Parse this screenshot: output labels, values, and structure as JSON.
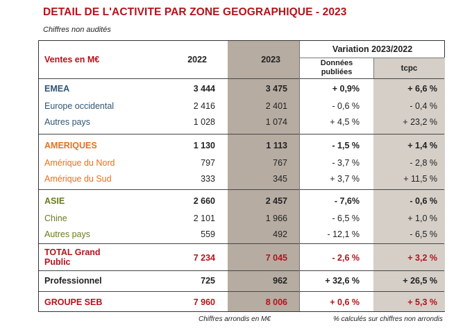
{
  "title": "DETAIL DE L'ACTIVITE PAR ZONE GEOGRAPHIQUE - 2023",
  "subtitle": "Chiffres non audités",
  "header": {
    "label": "Ventes en M€",
    "col_2022": "2022",
    "col_2023": "2023",
    "variation": "Variation 2023/2022",
    "published_line1": "Données",
    "published_line2": "publiées",
    "tcpc": "tcpc"
  },
  "rows": [
    {
      "label": "EMEA",
      "v2022": "3 444",
      "v2023": "3 475",
      "pub": "+ 0,9%",
      "tcpc": "+ 6,6 %"
    },
    {
      "label": "Europe occidental",
      "v2022": "2 416",
      "v2023": "2 401",
      "pub": "- 0,6 %",
      "tcpc": "- 0,4 %"
    },
    {
      "label": "Autres pays",
      "v2022": "1 028",
      "v2023": "1 074",
      "pub": "+ 4,5 %",
      "tcpc": "+ 23,2 %"
    },
    {
      "label": "AMERIQUES",
      "v2022": "1 130",
      "v2023": "1 113",
      "pub": "- 1,5 %",
      "tcpc": "+ 1,4 %"
    },
    {
      "label": "Amérique du Nord",
      "v2022": "797",
      "v2023": "767",
      "pub": "- 3,7 %",
      "tcpc": "- 2,8 %"
    },
    {
      "label": "Amérique du Sud",
      "v2022": "333",
      "v2023": "345",
      "pub": "+ 3,7 %",
      "tcpc": "+ 11,5 %"
    },
    {
      "label": "ASIE",
      "v2022": "2 660",
      "v2023": "2 457",
      "pub": "- 7,6%",
      "tcpc": "- 0,6 %"
    },
    {
      "label": "Chine",
      "v2022": "2 101",
      "v2023": "1 966",
      "pub": "- 6,5 %",
      "tcpc": "+ 1,0 %"
    },
    {
      "label": "Autres pays",
      "v2022": "559",
      "v2023": "492",
      "pub": "- 12,1 %",
      "tcpc": "- 6,5 %"
    },
    {
      "label_line1": "TOTAL Grand",
      "label_line2": "Public",
      "v2022": "7 234",
      "v2023": "7 045",
      "pub": "- 2,6 %",
      "tcpc": "+ 3,2 %"
    },
    {
      "label": "Professionnel",
      "v2022": "725",
      "v2023": "962",
      "pub": "+ 32,6 %",
      "tcpc": "+ 26,5 %"
    },
    {
      "label": "GROUPE SEB",
      "v2022": "7 960",
      "v2023": "8 006",
      "pub": "+ 0,6 %",
      "tcpc": "+ 5,3 %"
    }
  ],
  "footer": {
    "left": "Chiffres arrondis en M€",
    "right": "% calculés sur chiffres non arrondis"
  },
  "colors": {
    "title_red": "#b5121b",
    "emea_blue": "#2f5573",
    "americas_orange": "#e8701c",
    "asia_olive": "#6b7a22",
    "shade_2023": "#b6aca2",
    "shade_tcpc": "#d5cfc8"
  }
}
